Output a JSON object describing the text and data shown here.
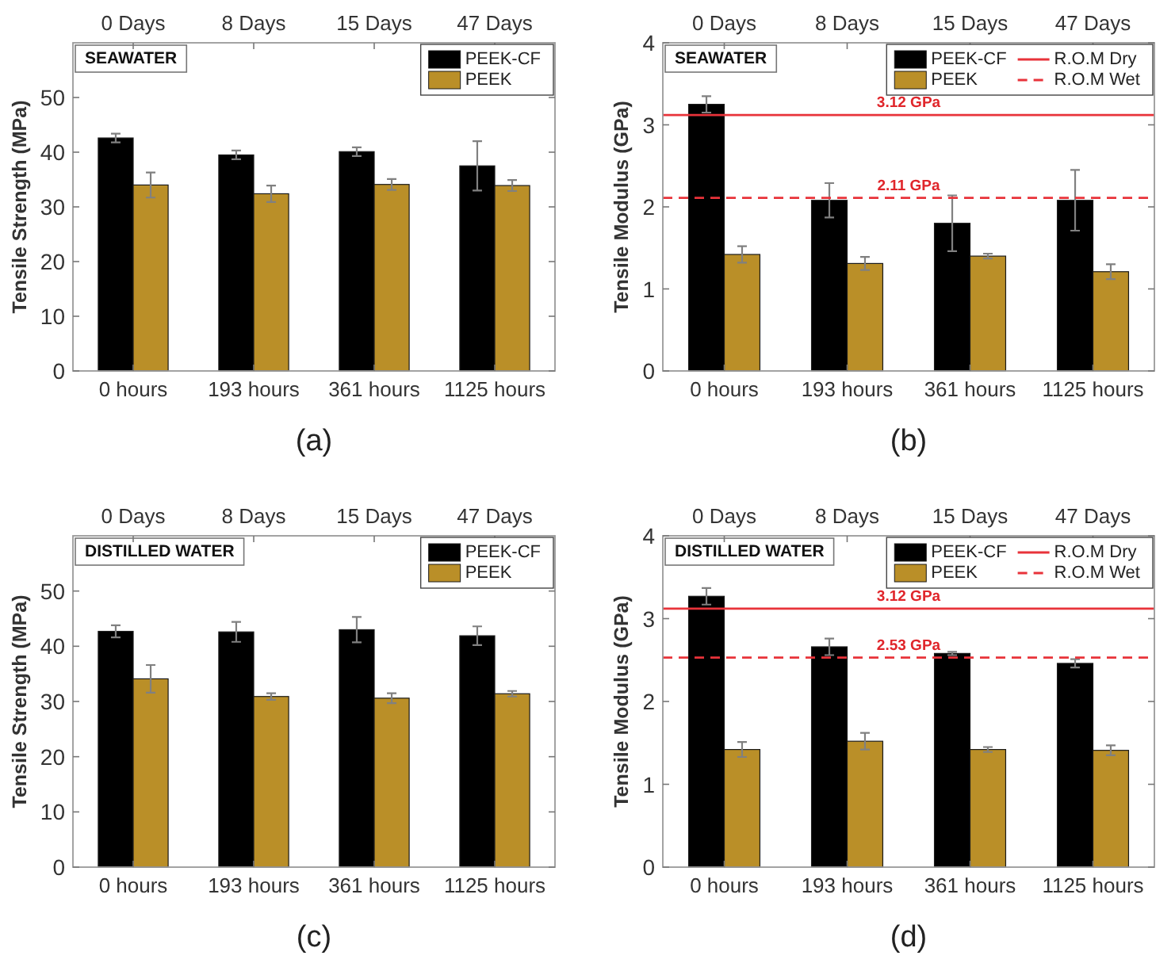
{
  "chart_data": [
    {
      "type": "bar",
      "title": "SEAWATER",
      "ylabel": "Tensile Strength (MPa)",
      "categories": [
        "0 hours",
        "193 hours",
        "361 hours",
        "1125 hours"
      ],
      "series": [
        {
          "name": "PEEK-CF",
          "color": "#000000",
          "values": [
            42.6,
            39.5,
            40.1,
            37.5
          ],
          "errors": [
            0.8,
            0.8,
            0.8,
            4.5
          ]
        },
        {
          "name": "PEEK",
          "color": "#ba8f28",
          "values": [
            34,
            32.4,
            34.1,
            33.9
          ],
          "errors": [
            2.3,
            1.5,
            1,
            1
          ]
        }
      ],
      "ylim": [
        0,
        60
      ],
      "yticks": [
        0,
        10,
        20,
        30,
        40,
        50
      ],
      "legend": "top right",
      "annotations": [
        "0 Days",
        "8 Days",
        "15 Days",
        "47 Days",
        "(a)"
      ]
    },
    {
      "type": "bar",
      "title": "SEAWATER",
      "ylabel": "Tensile Modulus (GPa)",
      "categories": [
        "0 hours",
        "193 hours",
        "361 hours",
        "1125 hours"
      ],
      "series": [
        {
          "name": "PEEK-CF",
          "color": "#000000",
          "values": [
            3.25,
            2.08,
            1.8,
            2.08
          ],
          "errors": [
            0.1,
            0.21,
            0.34,
            0.37
          ]
        },
        {
          "name": "PEEK",
          "color": "#ba8f28",
          "values": [
            1.42,
            1.31,
            1.4,
            1.21
          ],
          "errors": [
            0.1,
            0.08,
            0.03,
            0.09
          ]
        }
      ],
      "ylim": [
        0,
        4
      ],
      "yticks": [
        0,
        1,
        2,
        3,
        4
      ],
      "legend": "top right",
      "ref_lines": [
        {
          "axis": "y",
          "value": 3.12,
          "label": "R.O.M Dry",
          "color": "#e8333a",
          "line_style": "solid"
        },
        {
          "axis": "y",
          "value": 2.11,
          "label": "R.O.M Wet",
          "color": "#e8333a",
          "line_style": "dashed"
        }
      ],
      "annotations": [
        "0 Days",
        "8 Days",
        "15 Days",
        "47 Days",
        {
          "text": "3.12 GPa",
          "y": 3.12
        },
        {
          "text": "2.11 GPa",
          "y": 2.11
        },
        "(b)"
      ]
    },
    {
      "type": "bar",
      "title": "DISTILLED WATER",
      "ylabel": "Tensile Strength (MPa)",
      "categories": [
        "0 hours",
        "193 hours",
        "361 hours",
        "1125 hours"
      ],
      "series": [
        {
          "name": "PEEK-CF",
          "color": "#000000",
          "values": [
            42.7,
            42.6,
            43,
            41.9
          ],
          "errors": [
            1.1,
            1.8,
            2.3,
            1.7
          ]
        },
        {
          "name": "PEEK",
          "color": "#ba8f28",
          "values": [
            34.1,
            30.9,
            30.6,
            31.4
          ],
          "errors": [
            2.5,
            0.6,
            0.9,
            0.5
          ]
        }
      ],
      "ylim": [
        0,
        60
      ],
      "yticks": [
        0,
        10,
        20,
        30,
        40,
        50
      ],
      "legend": "top right",
      "annotations": [
        "0 Days",
        "8 Days",
        "15 Days",
        "47 Days",
        "(c)"
      ]
    },
    {
      "type": "bar",
      "title": "DISTILLED WATER",
      "ylabel": "Tensile Modulus (GPa)",
      "categories": [
        "0 hours",
        "193 hours",
        "361 hours",
        "1125 hours"
      ],
      "series": [
        {
          "name": "PEEK-CF",
          "color": "#000000",
          "values": [
            3.27,
            2.66,
            2.58,
            2.46
          ],
          "errors": [
            0.1,
            0.1,
            0.02,
            0.05
          ]
        },
        {
          "name": "PEEK",
          "color": "#ba8f28",
          "values": [
            1.42,
            1.52,
            1.42,
            1.41
          ],
          "errors": [
            0.09,
            0.1,
            0.03,
            0.06
          ]
        }
      ],
      "ylim": [
        0,
        4
      ],
      "yticks": [
        0,
        1,
        2,
        3,
        4
      ],
      "legend": "top right",
      "ref_lines": [
        {
          "axis": "y",
          "value": 3.12,
          "label": "R.O.M Dry",
          "color": "#e8333a",
          "line_style": "solid"
        },
        {
          "axis": "y",
          "value": 2.53,
          "label": "R.O.M Wet",
          "color": "#e8333a",
          "line_style": "dashed"
        }
      ],
      "annotations": [
        "0 Days",
        "8 Days",
        "15 Days",
        "47 Days",
        {
          "text": "3.12 GPa",
          "y": 3.12
        },
        {
          "text": "2.53 GPa",
          "y": 2.53
        },
        "(d)"
      ]
    }
  ]
}
